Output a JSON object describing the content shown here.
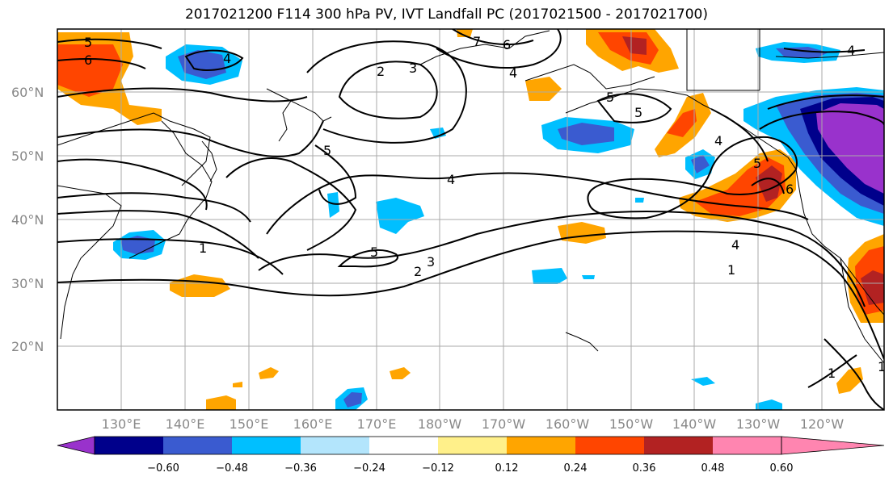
{
  "title": "2017021200 F114 300 hPa PV, IVT Landfall PC (2017021500 - 2017021700)",
  "lon_ticks": [
    "130°E",
    "140°E",
    "150°E",
    "160°E",
    "170°E",
    "180°W",
    "170°W",
    "160°W",
    "150°W",
    "140°W",
    "130°W",
    "120°W"
  ],
  "lat_ticks": [
    "60°N",
    "50°N",
    "40°N",
    "30°N",
    "20°N"
  ],
  "colorbar": {
    "colors": [
      "#9932cc",
      "#00008b",
      "#3a5bd0",
      "#00bfff",
      "#b3e5fc",
      "#ffffff",
      "#fff08a",
      "#ffa500",
      "#ff4500",
      "#b22222",
      "#ff85b0"
    ],
    "extend_min_color": "#9932cc",
    "extend_max_color": "#ff85b0",
    "tick_labels": [
      "−0.60",
      "−0.48",
      "−0.36",
      "−0.24",
      "−0.12",
      "0.12",
      "0.24",
      "0.36",
      "0.48",
      "0.60"
    ]
  },
  "contour_labels": [
    {
      "text": "5",
      "key": "c5a"
    },
    {
      "text": "6",
      "key": "c6a"
    },
    {
      "text": "4",
      "key": "c4a"
    },
    {
      "text": "2",
      "key": "c2a"
    },
    {
      "text": "3",
      "key": "c3a"
    },
    {
      "text": "7",
      "key": "c7a"
    },
    {
      "text": "6",
      "key": "c6b"
    },
    {
      "text": "4",
      "key": "c4b"
    },
    {
      "text": "5",
      "key": "c5b"
    },
    {
      "text": "4",
      "key": "c4c"
    },
    {
      "text": "5",
      "key": "c5c"
    },
    {
      "text": "1",
      "key": "c1a"
    },
    {
      "text": "5",
      "key": "c5d"
    },
    {
      "text": "3",
      "key": "c3b"
    },
    {
      "text": "2",
      "key": "c2b"
    },
    {
      "text": "4",
      "key": "c4d"
    },
    {
      "text": "1",
      "key": "c1b"
    },
    {
      "text": "4",
      "key": "c4e"
    },
    {
      "text": "5",
      "key": "c5e"
    },
    {
      "text": "6",
      "key": "c6c"
    },
    {
      "text": "1",
      "key": "c1c"
    },
    {
      "text": "1",
      "key": "c1d"
    },
    {
      "text": "4",
      "key": "c4f"
    },
    {
      "text": "5",
      "key": "c5f"
    }
  ]
}
